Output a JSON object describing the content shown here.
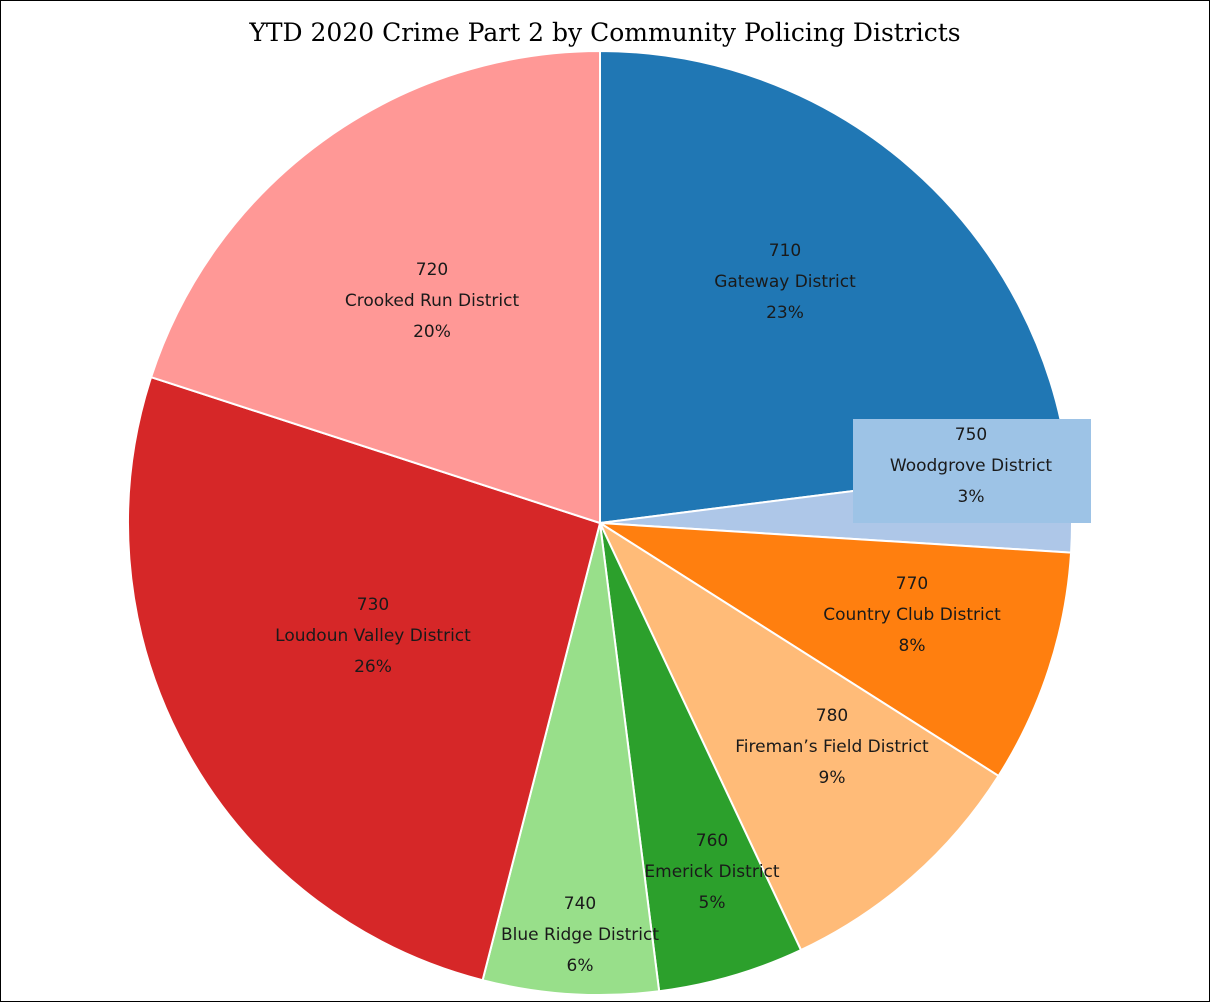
{
  "chart_data": {
    "type": "pie",
    "title": "YTD 2020 Crime Part 2 by Community Policing Districts",
    "slices": [
      {
        "code": "710",
        "name": "Gateway District",
        "value": 23,
        "label": "23%",
        "color": "#2077b4"
      },
      {
        "code": "750",
        "name": "Woodgrove District",
        "value": 3,
        "label": "3%",
        "color": "#aec7e8",
        "label_box_color": "#9dc3e6"
      },
      {
        "code": "770",
        "name": "Country Club District",
        "value": 8,
        "label": "8%",
        "color": "#ff7f0f"
      },
      {
        "code": "780",
        "name": "Fireman’s Field District",
        "value": 9,
        "label": "9%",
        "color": "#ffbb78"
      },
      {
        "code": "760",
        "name": "Emerick District",
        "value": 5,
        "label": "5%",
        "color": "#2ca02c"
      },
      {
        "code": "740",
        "name": "Blue Ridge District",
        "value": 6,
        "label": "6%",
        "color": "#98df8a"
      },
      {
        "code": "730",
        "name": "Loudoun Valley District",
        "value": 26,
        "label": "26%",
        "color": "#d62728"
      },
      {
        "code": "720",
        "name": "Crooked Run District",
        "value": 20,
        "label": "20%",
        "color": "#ff9896"
      }
    ],
    "start_angle": "12 o'clock",
    "direction": "clockwise",
    "legend": "none"
  }
}
